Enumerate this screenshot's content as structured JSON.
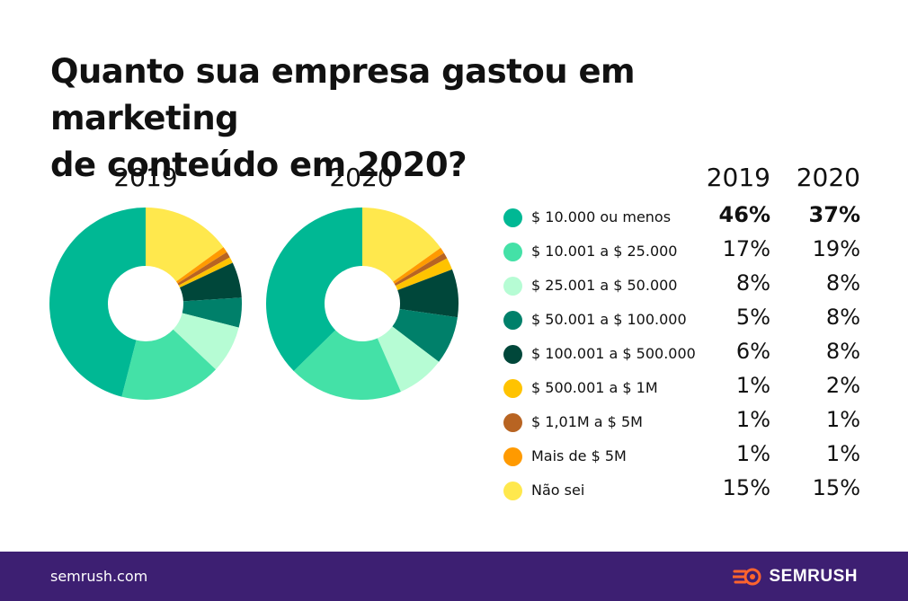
{
  "title": {
    "line1": "Quanto sua empresa gastou em marketing",
    "line2": "de conteúdo em 2020?"
  },
  "chart_data": {
    "type": "pie",
    "donut": true,
    "categories": [
      "$ 10.000 ou menos",
      "$ 10.001 a $ 25.000",
      "$ 25.001 a $ 50.000",
      "$ 50.001 a $ 100.000",
      "$ 100.001 a $ 500.000",
      "$ 500.001 a $ 1M",
      "$ 1,01M a $ 5M",
      "Mais de $ 5M",
      "Não sei"
    ],
    "colors": [
      "#00b894",
      "#44e1a7",
      "#b6fcd4",
      "#00806a",
      "#00473a",
      "#ffc300",
      "#b86422",
      "#ff9a00",
      "#ffe84d"
    ],
    "series": [
      {
        "name": "2019",
        "values": [
          46,
          17,
          8,
          5,
          6,
          1,
          1,
          1,
          15
        ],
        "labels": [
          "46%",
          "17%",
          "8%",
          "5%",
          "6%",
          "1%",
          "1%",
          "1%",
          "15%"
        ]
      },
      {
        "name": "2020",
        "values": [
          37,
          19,
          8,
          8,
          8,
          2,
          1,
          1,
          15
        ],
        "labels": [
          "37%",
          "19%",
          "8%",
          "8%",
          "8%",
          "2%",
          "1%",
          "1%",
          "15%"
        ]
      }
    ],
    "legend_placement": "right"
  },
  "footer": {
    "site": "semrush.com",
    "brand": "SEMRUSH",
    "background": "#3d1f72"
  }
}
